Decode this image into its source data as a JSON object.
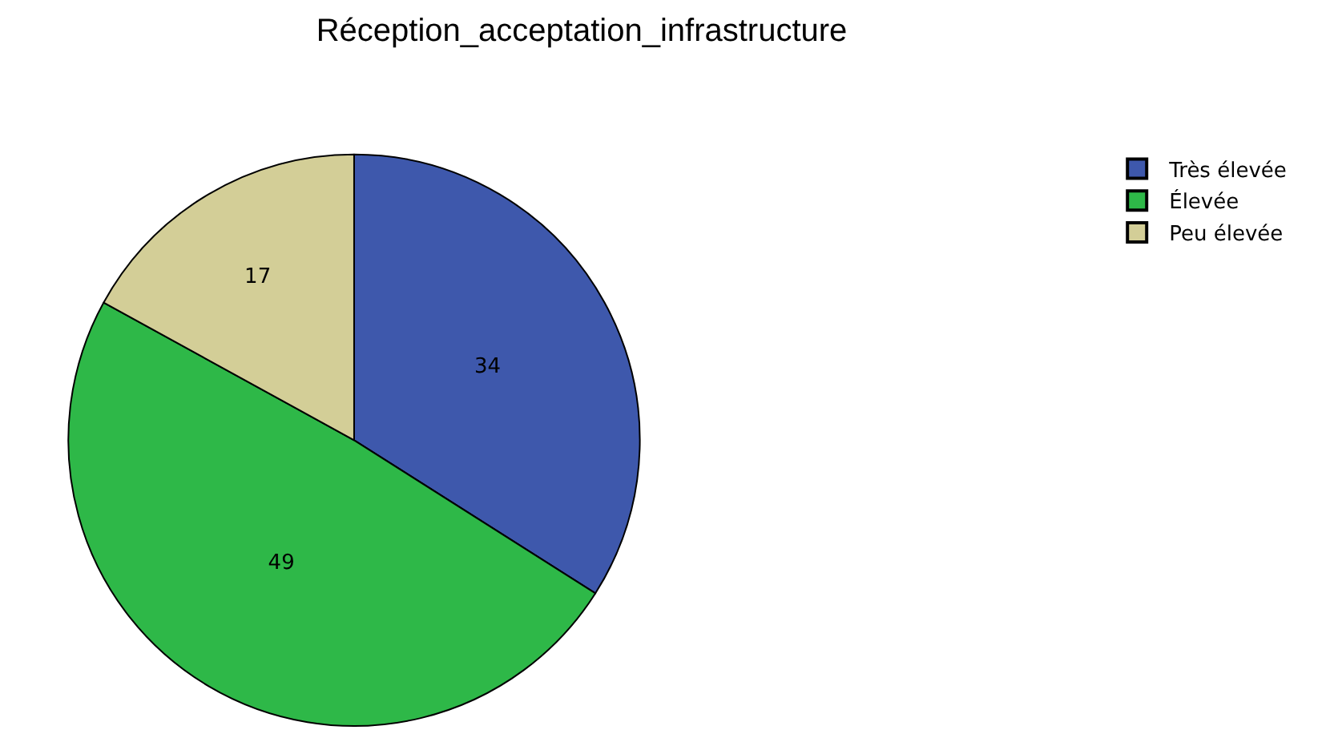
{
  "chart_data": {
    "type": "pie",
    "title": "Réception_acceptation_infrastructure",
    "categories": [
      "Très élevée",
      "Élevée",
      "Peu élevée"
    ],
    "values": [
      34,
      49,
      17
    ],
    "colors": [
      "#3e58ac",
      "#2eb848",
      "#d3ce97"
    ],
    "data_labels": true,
    "legend": "top right"
  }
}
